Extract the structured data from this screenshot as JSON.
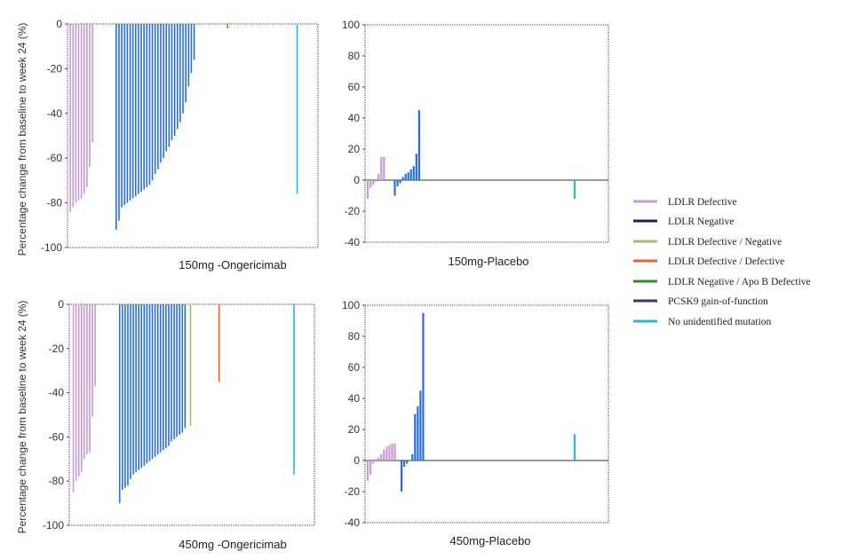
{
  "y_axis_label": "Percentage change from baseline to week 24 (%)",
  "legend": {
    "items": [
      {
        "label": "LDLR Defective",
        "color": "#c79bd3"
      },
      {
        "label": "LDLR Negative",
        "color": "#14264d"
      },
      {
        "label": "LDLR Defective / Negative",
        "color": "#b8b07a"
      },
      {
        "label": "LDLR Defective / Defective",
        "color": "#e0662a"
      },
      {
        "label": "LDLR Negative / Apo B Defective",
        "color": "#2a8f2a"
      },
      {
        "label": "PCSK9 gain-of-function",
        "color": "#4b2b7f"
      },
      {
        "label": "No unidentified mutation",
        "color": "#29b6e0"
      }
    ]
  },
  "chart_data": [
    {
      "type": "bar",
      "title": "150mg -Ongericimab",
      "ylabel": "Percentage change from baseline to week 24 (%)",
      "ylim": [
        -100,
        0
      ],
      "yticks": [
        0,
        -20,
        -40,
        -60,
        -80,
        -100
      ],
      "xlim": [
        0,
        180
      ],
      "grid": false,
      "bars": [
        {
          "x": 2,
          "y": -84,
          "group": "LDLR Defective"
        },
        {
          "x": 4,
          "y": -82,
          "group": "LDLR Defective"
        },
        {
          "x": 6,
          "y": -80,
          "group": "LDLR Defective"
        },
        {
          "x": 8,
          "y": -79,
          "group": "LDLR Defective"
        },
        {
          "x": 10,
          "y": -78,
          "group": "LDLR Defective"
        },
        {
          "x": 12,
          "y": -76,
          "group": "LDLR Defective"
        },
        {
          "x": 14,
          "y": -73,
          "group": "LDLR Defective"
        },
        {
          "x": 16,
          "y": -64,
          "group": "LDLR Defective"
        },
        {
          "x": 18,
          "y": -53,
          "group": "LDLR Defective"
        },
        {
          "x": 35,
          "y": -92,
          "group": "LDLR Negative"
        },
        {
          "x": 37,
          "y": -88,
          "group": "LDLR Negative"
        },
        {
          "x": 39,
          "y": -82,
          "group": "LDLR Negative"
        },
        {
          "x": 41,
          "y": -81,
          "group": "LDLR Negative"
        },
        {
          "x": 43,
          "y": -80,
          "group": "LDLR Negative"
        },
        {
          "x": 45,
          "y": -79,
          "group": "LDLR Negative"
        },
        {
          "x": 47,
          "y": -78,
          "group": "LDLR Negative"
        },
        {
          "x": 49,
          "y": -77,
          "group": "LDLR Negative"
        },
        {
          "x": 51,
          "y": -76,
          "group": "LDLR Negative"
        },
        {
          "x": 53,
          "y": -75,
          "group": "LDLR Negative"
        },
        {
          "x": 55,
          "y": -74,
          "group": "LDLR Negative"
        },
        {
          "x": 57,
          "y": -73,
          "group": "LDLR Negative"
        },
        {
          "x": 59,
          "y": -72,
          "group": "LDLR Negative"
        },
        {
          "x": 61,
          "y": -70,
          "group": "LDLR Negative"
        },
        {
          "x": 63,
          "y": -67,
          "group": "LDLR Negative"
        },
        {
          "x": 65,
          "y": -65,
          "group": "LDLR Negative"
        },
        {
          "x": 67,
          "y": -62,
          "group": "LDLR Negative"
        },
        {
          "x": 69,
          "y": -60,
          "group": "LDLR Negative"
        },
        {
          "x": 71,
          "y": -57,
          "group": "LDLR Negative"
        },
        {
          "x": 73,
          "y": -55,
          "group": "LDLR Negative"
        },
        {
          "x": 75,
          "y": -52,
          "group": "LDLR Negative"
        },
        {
          "x": 77,
          "y": -50,
          "group": "LDLR Negative"
        },
        {
          "x": 79,
          "y": -47,
          "group": "LDLR Negative"
        },
        {
          "x": 81,
          "y": -44,
          "group": "LDLR Negative"
        },
        {
          "x": 83,
          "y": -40,
          "group": "LDLR Negative"
        },
        {
          "x": 85,
          "y": -35,
          "group": "LDLR Negative"
        },
        {
          "x": 87,
          "y": -28,
          "group": "LDLR Negative"
        },
        {
          "x": 89,
          "y": -22,
          "group": "LDLR Negative"
        },
        {
          "x": 91,
          "y": -16,
          "group": "LDLR Negative"
        },
        {
          "x": 115,
          "y": -2,
          "group": "LDLR Defective / Defective"
        },
        {
          "x": 165,
          "y": -76,
          "group": "No unidentified mutation"
        }
      ]
    },
    {
      "type": "bar",
      "title": "150mg-Placebo",
      "ylim": [
        -40,
        100
      ],
      "yticks": [
        100,
        80,
        60,
        40,
        20,
        0,
        -20,
        -40
      ],
      "xlim": [
        0,
        180
      ],
      "grid": false,
      "bars": [
        {
          "x": 2,
          "y": -12,
          "group": "LDLR Defective"
        },
        {
          "x": 4,
          "y": -5,
          "group": "LDLR Defective"
        },
        {
          "x": 6,
          "y": -3,
          "group": "LDLR Defective"
        },
        {
          "x": 8,
          "y": -1,
          "group": "LDLR Defective"
        },
        {
          "x": 10,
          "y": 4,
          "group": "LDLR Defective"
        },
        {
          "x": 12,
          "y": 15,
          "group": "LDLR Defective"
        },
        {
          "x": 14,
          "y": 15,
          "group": "LDLR Defective"
        },
        {
          "x": 22,
          "y": -10,
          "group": "LDLR Negative"
        },
        {
          "x": 24,
          "y": -4,
          "group": "LDLR Negative"
        },
        {
          "x": 26,
          "y": -2,
          "group": "LDLR Negative"
        },
        {
          "x": 28,
          "y": 2,
          "group": "LDLR Negative"
        },
        {
          "x": 30,
          "y": 4,
          "group": "LDLR Negative"
        },
        {
          "x": 32,
          "y": 5,
          "group": "LDLR Negative"
        },
        {
          "x": 34,
          "y": 7,
          "group": "LDLR Negative"
        },
        {
          "x": 36,
          "y": 9,
          "group": "LDLR Negative"
        },
        {
          "x": 38,
          "y": 17,
          "group": "LDLR Negative"
        },
        {
          "x": 40,
          "y": 45,
          "group": "LDLR Negative"
        },
        {
          "x": 155,
          "y": -12,
          "group": "No unidentified mutation"
        }
      ]
    },
    {
      "type": "bar",
      "title": "450mg -Ongericimab",
      "ylabel": "Percentage change from baseline to week 24 (%)",
      "ylim": [
        -100,
        0
      ],
      "yticks": [
        0,
        -20,
        -40,
        -60,
        -80,
        -100
      ],
      "xlim": [
        0,
        180
      ],
      "grid": false,
      "bars": [
        {
          "x": 3,
          "y": -85,
          "group": "LDLR Defective"
        },
        {
          "x": 5,
          "y": -80,
          "group": "LDLR Defective"
        },
        {
          "x": 7,
          "y": -78,
          "group": "LDLR Defective"
        },
        {
          "x": 9,
          "y": -76,
          "group": "LDLR Defective"
        },
        {
          "x": 11,
          "y": -70,
          "group": "LDLR Defective"
        },
        {
          "x": 13,
          "y": -68,
          "group": "LDLR Defective"
        },
        {
          "x": 15,
          "y": -67,
          "group": "LDLR Defective"
        },
        {
          "x": 17,
          "y": -51,
          "group": "LDLR Defective"
        },
        {
          "x": 19,
          "y": -37,
          "group": "LDLR Defective"
        },
        {
          "x": 37,
          "y": -90,
          "group": "LDLR Negative"
        },
        {
          "x": 39,
          "y": -84,
          "group": "LDLR Negative"
        },
        {
          "x": 41,
          "y": -83,
          "group": "LDLR Negative"
        },
        {
          "x": 43,
          "y": -82,
          "group": "LDLR Negative"
        },
        {
          "x": 45,
          "y": -79,
          "group": "LDLR Negative"
        },
        {
          "x": 47,
          "y": -77,
          "group": "LDLR Negative"
        },
        {
          "x": 49,
          "y": -76,
          "group": "LDLR Negative"
        },
        {
          "x": 51,
          "y": -75,
          "group": "LDLR Negative"
        },
        {
          "x": 53,
          "y": -74,
          "group": "LDLR Negative"
        },
        {
          "x": 55,
          "y": -73,
          "group": "LDLR Negative"
        },
        {
          "x": 57,
          "y": -72,
          "group": "LDLR Negative"
        },
        {
          "x": 59,
          "y": -71,
          "group": "LDLR Negative"
        },
        {
          "x": 61,
          "y": -70,
          "group": "LDLR Negative"
        },
        {
          "x": 63,
          "y": -69,
          "group": "LDLR Negative"
        },
        {
          "x": 65,
          "y": -68,
          "group": "LDLR Negative"
        },
        {
          "x": 67,
          "y": -67,
          "group": "LDLR Negative"
        },
        {
          "x": 69,
          "y": -66,
          "group": "LDLR Negative"
        },
        {
          "x": 71,
          "y": -65,
          "group": "LDLR Negative"
        },
        {
          "x": 73,
          "y": -64,
          "group": "LDLR Negative"
        },
        {
          "x": 75,
          "y": -62,
          "group": "LDLR Negative"
        },
        {
          "x": 77,
          "y": -61,
          "group": "LDLR Negative"
        },
        {
          "x": 79,
          "y": -60,
          "group": "LDLR Negative"
        },
        {
          "x": 81,
          "y": -59,
          "group": "LDLR Negative"
        },
        {
          "x": 83,
          "y": -58,
          "group": "LDLR Negative"
        },
        {
          "x": 85,
          "y": -56,
          "group": "LDLR Negative"
        },
        {
          "x": 89,
          "y": -55,
          "group": "LDLR Defective / Negative"
        },
        {
          "x": 110,
          "y": -35,
          "group": "LDLR Defective / Defective"
        },
        {
          "x": 165,
          "y": -77,
          "group": "No unidentified mutation"
        }
      ]
    },
    {
      "type": "bar",
      "title": "450mg-Placebo",
      "ylim": [
        -40,
        100
      ],
      "yticks": [
        100,
        80,
        60,
        40,
        20,
        0,
        -20,
        -40
      ],
      "xlim": [
        0,
        180
      ],
      "grid": false,
      "bars": [
        {
          "x": 2,
          "y": -13,
          "group": "LDLR Defective"
        },
        {
          "x": 4,
          "y": -9,
          "group": "LDLR Defective"
        },
        {
          "x": 6,
          "y": -2,
          "group": "LDLR Defective"
        },
        {
          "x": 8,
          "y": 1,
          "group": "LDLR Defective"
        },
        {
          "x": 10,
          "y": 2,
          "group": "LDLR Defective"
        },
        {
          "x": 12,
          "y": 4,
          "group": "LDLR Defective"
        },
        {
          "x": 14,
          "y": 7,
          "group": "LDLR Defective"
        },
        {
          "x": 16,
          "y": 9,
          "group": "LDLR Defective"
        },
        {
          "x": 18,
          "y": 10,
          "group": "LDLR Defective"
        },
        {
          "x": 20,
          "y": 11,
          "group": "LDLR Defective"
        },
        {
          "x": 22,
          "y": 11,
          "group": "LDLR Defective"
        },
        {
          "x": 27,
          "y": -20,
          "group": "LDLR Negative"
        },
        {
          "x": 29,
          "y": -4,
          "group": "LDLR Negative"
        },
        {
          "x": 31,
          "y": -2,
          "group": "LDLR Negative"
        },
        {
          "x": 35,
          "y": 4,
          "group": "LDLR Negative"
        },
        {
          "x": 37,
          "y": 30,
          "group": "LDLR Negative"
        },
        {
          "x": 39,
          "y": 35,
          "group": "LDLR Negative"
        },
        {
          "x": 41,
          "y": 45,
          "group": "LDLR Negative"
        },
        {
          "x": 43,
          "y": 95,
          "group": "LDLR Negative"
        },
        {
          "x": 155,
          "y": 17,
          "group": "No unidentified mutation"
        }
      ]
    }
  ]
}
